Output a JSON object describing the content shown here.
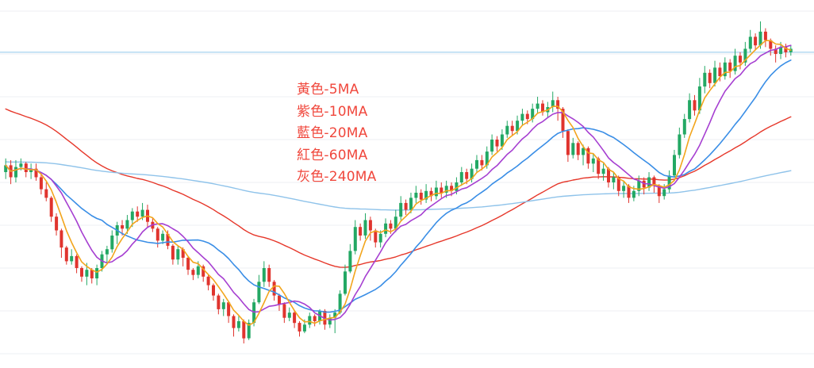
{
  "legend": {
    "items": [
      {
        "label": "黃色-5MA",
        "color": "#f2a51c"
      },
      {
        "label": "紫色-10MA",
        "color": "#a63fd1"
      },
      {
        "label": "藍色-20MA",
        "color": "#3a8ee6"
      },
      {
        "label": "紅色-60MA",
        "color": "#e6372a"
      },
      {
        "label": "灰色-240MA",
        "color": "#8fc3ea"
      }
    ],
    "text_color": "#f0473c"
  },
  "colors": {
    "up": "#23a864",
    "down": "#e0342e",
    "reference_line": "#8fc8ea",
    "gridline": "#eceff3"
  },
  "chart_data": {
    "type": "candlestick",
    "title": "",
    "xlabel": "",
    "ylabel": "",
    "ylim": [
      0,
      100
    ],
    "grid": true,
    "legend_placement": "center-left",
    "reference_line": 88,
    "candles": [
      [
        53.0,
        55.0,
        57.0,
        51.0
      ],
      [
        55.0,
        51.5,
        56.5,
        49.5
      ],
      [
        51.5,
        54.5,
        56.5,
        50.0
      ],
      [
        54.5,
        55.5,
        57.0,
        53.5
      ],
      [
        55.5,
        53.0,
        56.0,
        51.5
      ],
      [
        53.0,
        54.0,
        55.5,
        51.0
      ],
      [
        54.0,
        51.5,
        55.5,
        50.5
      ],
      [
        51.5,
        48.0,
        52.5,
        46.5
      ],
      [
        48.0,
        45.5,
        50.0,
        44.5
      ],
      [
        45.5,
        40.0,
        46.0,
        38.5
      ],
      [
        40.0,
        36.0,
        41.0,
        34.5
      ],
      [
        36.0,
        31.0,
        36.5,
        28.0
      ],
      [
        31.0,
        27.0,
        31.5,
        26.0
      ],
      [
        27.0,
        28.5,
        30.5,
        26.0
      ],
      [
        28.5,
        25.0,
        29.0,
        23.5
      ],
      [
        25.0,
        22.5,
        25.5,
        21.0
      ],
      [
        22.5,
        24.5,
        26.5,
        20.0
      ],
      [
        24.5,
        22.0,
        25.0,
        20.5
      ],
      [
        22.0,
        25.0,
        26.0,
        20.0
      ],
      [
        25.0,
        29.0,
        30.0,
        24.0
      ],
      [
        29.0,
        30.5,
        31.5,
        26.0
      ],
      [
        30.5,
        34.5,
        36.0,
        29.5
      ],
      [
        34.5,
        37.5,
        38.5,
        32.0
      ],
      [
        37.5,
        36.5,
        39.0,
        34.5
      ],
      [
        36.5,
        39.0,
        40.5,
        35.0
      ],
      [
        39.0,
        41.5,
        42.5,
        37.0
      ],
      [
        41.5,
        40.0,
        43.0,
        38.5
      ],
      [
        40.0,
        42.0,
        44.0,
        39.0
      ],
      [
        42.0,
        38.5,
        43.5,
        37.0
      ],
      [
        38.5,
        36.5,
        39.5,
        35.5
      ],
      [
        36.5,
        33.0,
        37.0,
        31.0
      ],
      [
        33.0,
        35.0,
        36.0,
        32.0
      ],
      [
        35.0,
        31.5,
        36.0,
        30.5
      ],
      [
        31.5,
        27.5,
        32.0,
        26.0
      ],
      [
        27.5,
        30.5,
        31.5,
        26.0
      ],
      [
        30.5,
        28.0,
        31.0,
        25.5
      ],
      [
        28.0,
        24.5,
        28.5,
        23.0
      ],
      [
        24.5,
        23.0,
        25.0,
        21.5
      ],
      [
        23.0,
        25.5,
        27.0,
        22.0
      ],
      [
        25.5,
        22.5,
        26.0,
        21.0
      ],
      [
        22.5,
        20.0,
        23.0,
        18.5
      ],
      [
        20.0,
        17.0,
        20.5,
        15.5
      ],
      [
        17.0,
        13.0,
        17.5,
        11.5
      ],
      [
        13.0,
        15.0,
        16.0,
        11.0
      ],
      [
        15.0,
        11.0,
        15.5,
        9.0
      ],
      [
        11.0,
        7.5,
        11.5,
        5.0
      ],
      [
        7.5,
        9.5,
        11.0,
        6.5
      ],
      [
        9.5,
        4.5,
        10.0,
        3.0
      ],
      [
        4.5,
        9.0,
        10.0,
        4.0
      ],
      [
        9.0,
        15.0,
        16.0,
        8.0
      ],
      [
        15.0,
        21.0,
        23.0,
        14.5
      ],
      [
        21.0,
        25.0,
        27.0,
        19.5
      ],
      [
        25.0,
        21.0,
        26.0,
        19.5
      ],
      [
        21.0,
        17.0,
        21.5,
        15.5
      ],
      [
        17.0,
        14.5,
        17.5,
        12.5
      ],
      [
        14.5,
        10.5,
        15.0,
        9.0
      ],
      [
        10.5,
        12.0,
        13.5,
        9.5
      ],
      [
        12.0,
        9.0,
        12.5,
        7.5
      ],
      [
        9.0,
        6.5,
        9.5,
        5.0
      ],
      [
        6.5,
        8.5,
        10.0,
        6.0
      ],
      [
        8.5,
        11.0,
        12.0,
        7.5
      ],
      [
        11.0,
        9.5,
        11.5,
        8.0
      ],
      [
        9.5,
        12.5,
        13.0,
        8.5
      ],
      [
        12.5,
        8.5,
        13.0,
        7.0
      ],
      [
        8.5,
        10.5,
        11.5,
        7.5
      ],
      [
        10.5,
        12.0,
        13.0,
        6.0
      ],
      [
        12.0,
        17.5,
        18.5,
        11.5
      ],
      [
        17.5,
        24.0,
        26.0,
        17.0
      ],
      [
        24.0,
        30.0,
        32.0,
        23.5
      ],
      [
        30.0,
        37.0,
        39.0,
        29.0
      ],
      [
        37.0,
        34.5,
        38.0,
        33.0
      ],
      [
        34.5,
        39.0,
        41.0,
        33.5
      ],
      [
        39.0,
        36.0,
        40.0,
        33.0
      ],
      [
        36.0,
        32.5,
        36.5,
        31.0
      ],
      [
        32.5,
        35.0,
        36.0,
        31.0
      ],
      [
        35.0,
        38.0,
        39.5,
        34.0
      ],
      [
        38.0,
        36.5,
        39.0,
        35.0
      ],
      [
        36.5,
        40.0,
        42.0,
        35.5
      ],
      [
        40.0,
        44.0,
        46.0,
        39.0
      ],
      [
        44.0,
        42.0,
        45.0,
        40.5
      ],
      [
        42.0,
        45.5,
        47.0,
        41.0
      ],
      [
        45.5,
        47.0,
        49.0,
        44.0
      ],
      [
        47.0,
        45.0,
        48.0,
        43.5
      ],
      [
        45.0,
        47.5,
        49.5,
        44.0
      ],
      [
        47.5,
        46.0,
        48.5,
        44.5
      ],
      [
        46.0,
        48.5,
        50.5,
        45.0
      ],
      [
        48.5,
        47.0,
        50.0,
        45.5
      ],
      [
        47.0,
        49.0,
        50.5,
        45.5
      ],
      [
        49.0,
        47.5,
        50.0,
        46.0
      ],
      [
        47.5,
        50.0,
        51.5,
        46.5
      ],
      [
        50.0,
        53.0,
        54.5,
        49.0
      ],
      [
        53.0,
        51.0,
        54.0,
        49.5
      ],
      [
        51.0,
        54.0,
        55.5,
        50.0
      ],
      [
        54.0,
        56.5,
        58.0,
        53.0
      ],
      [
        56.5,
        55.0,
        58.0,
        53.5
      ],
      [
        55.0,
        59.0,
        60.5,
        54.0
      ],
      [
        59.0,
        62.5,
        64.0,
        58.0
      ],
      [
        62.5,
        60.5,
        63.5,
        59.0
      ],
      [
        60.5,
        64.0,
        65.5,
        59.5
      ],
      [
        64.0,
        66.5,
        68.0,
        63.0
      ],
      [
        66.5,
        65.0,
        68.0,
        63.5
      ],
      [
        65.0,
        68.0,
        69.5,
        64.0
      ],
      [
        68.0,
        70.0,
        71.5,
        66.5
      ],
      [
        70.0,
        68.5,
        71.0,
        67.0
      ],
      [
        68.5,
        71.5,
        73.0,
        67.5
      ],
      [
        71.5,
        73.0,
        75.0,
        70.0
      ],
      [
        73.0,
        70.5,
        74.0,
        69.5
      ],
      [
        70.5,
        72.0,
        73.5,
        69.0
      ],
      [
        72.0,
        74.0,
        76.5,
        70.5
      ],
      [
        74.0,
        71.5,
        75.0,
        68.0
      ],
      [
        71.5,
        65.0,
        72.0,
        63.0
      ],
      [
        65.0,
        58.0,
        65.5,
        56.0
      ],
      [
        58.0,
        61.5,
        63.0,
        57.0
      ],
      [
        61.5,
        58.0,
        62.0,
        56.5
      ],
      [
        58.0,
        60.0,
        61.0,
        55.0
      ],
      [
        60.0,
        55.5,
        60.5,
        54.0
      ],
      [
        55.5,
        57.0,
        58.5,
        53.0
      ],
      [
        57.0,
        52.5,
        57.5,
        51.0
      ],
      [
        52.5,
        54.0,
        55.5,
        50.5
      ],
      [
        54.0,
        50.0,
        54.5,
        48.5
      ],
      [
        50.0,
        51.5,
        53.0,
        48.0
      ],
      [
        51.5,
        47.5,
        52.0,
        46.0
      ],
      [
        47.5,
        49.0,
        50.5,
        45.5
      ],
      [
        49.0,
        45.5,
        49.5,
        44.0
      ],
      [
        45.5,
        47.5,
        49.0,
        44.5
      ],
      [
        47.5,
        50.5,
        52.0,
        46.0
      ],
      [
        50.5,
        48.5,
        51.5,
        46.5
      ],
      [
        48.5,
        51.5,
        53.0,
        47.5
      ],
      [
        51.5,
        49.0,
        52.0,
        47.0
      ],
      [
        49.0,
        46.0,
        49.5,
        44.0
      ],
      [
        46.0,
        48.0,
        49.5,
        45.0
      ],
      [
        48.0,
        52.0,
        53.5,
        47.0
      ],
      [
        52.0,
        58.0,
        59.5,
        51.5
      ],
      [
        58.0,
        64.0,
        66.0,
        57.0
      ],
      [
        64.0,
        68.5,
        70.0,
        63.0
      ],
      [
        68.5,
        74.0,
        76.0,
        67.5
      ],
      [
        74.0,
        71.0,
        75.5,
        69.5
      ],
      [
        71.0,
        78.0,
        80.5,
        70.0
      ],
      [
        78.0,
        82.0,
        84.0,
        76.0
      ],
      [
        82.0,
        79.0,
        83.0,
        77.5
      ],
      [
        79.0,
        83.5,
        85.5,
        78.0
      ],
      [
        83.5,
        81.0,
        85.0,
        79.5
      ],
      [
        81.0,
        85.0,
        86.5,
        80.0
      ],
      [
        85.0,
        82.5,
        86.0,
        80.5
      ],
      [
        82.5,
        87.0,
        89.0,
        81.5
      ],
      [
        87.0,
        85.0,
        88.0,
        83.0
      ],
      [
        85.0,
        89.0,
        91.0,
        84.0
      ],
      [
        89.0,
        92.5,
        94.5,
        88.0
      ],
      [
        92.5,
        90.0,
        93.5,
        88.5
      ],
      [
        90.0,
        94.0,
        97.0,
        89.0
      ],
      [
        94.0,
        91.5,
        95.0,
        89.5
      ],
      [
        91.5,
        89.0,
        92.0,
        87.0
      ],
      [
        89.0,
        87.5,
        90.0,
        85.0
      ],
      [
        87.5,
        89.5,
        91.0,
        86.0
      ],
      [
        89.5,
        88.0,
        90.5,
        86.5
      ],
      [
        88.0,
        89.0,
        90.0,
        87.0
      ]
    ],
    "series": [
      {
        "name": "黃色-5MA",
        "period": 5,
        "color": "#f2a51c"
      },
      {
        "name": "紫色-10MA",
        "period": 10,
        "color": "#a63fd1"
      },
      {
        "name": "藍色-20MA",
        "period": 20,
        "color": "#3a8ee6"
      },
      {
        "name": "紅色-60MA",
        "period": 60,
        "color": "#e6372a"
      },
      {
        "name": "灰色-240MA",
        "period": 240,
        "color": "#8fc3ea"
      }
    ]
  }
}
